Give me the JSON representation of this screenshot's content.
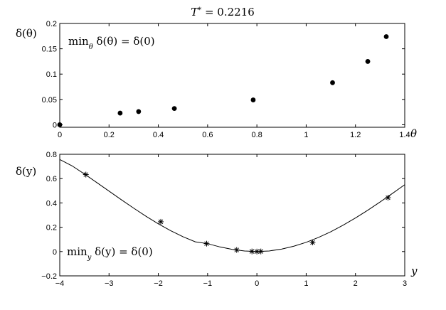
{
  "figure": {
    "title_main": "T",
    "title_sup": "*",
    "title_rest": " = 0.2216"
  },
  "chart_data": [
    {
      "type": "scatter",
      "ylabel_main": "δ(θ)",
      "xlabel_main": "θ",
      "annotation": {
        "prefix": "min",
        "subscript": "θ",
        "rest": " δ(θ) = δ(0)"
      },
      "xlim": [
        0,
        1.4
      ],
      "ylim": [
        -0.005,
        0.2
      ],
      "xticks": [
        0,
        0.2,
        0.4,
        0.6,
        0.8,
        1,
        1.2,
        1.4
      ],
      "xtick_labels": [
        "0",
        "0.2",
        "0.4",
        "0.6",
        "0.8",
        "1",
        "1.2",
        "1.4"
      ],
      "yticks": [
        0,
        0.05,
        0.1,
        0.15,
        0.2
      ],
      "ytick_labels": [
        "0",
        "0.05",
        "0.1",
        "0.15",
        "0.2"
      ],
      "grid": false,
      "marker": "dot",
      "points": [
        {
          "x": 0,
          "y": 0
        },
        {
          "x": 0.245,
          "y": 0.023
        },
        {
          "x": 0.32,
          "y": 0.026
        },
        {
          "x": 0.465,
          "y": 0.032
        },
        {
          "x": 0.785,
          "y": 0.049
        },
        {
          "x": 1.107,
          "y": 0.083
        },
        {
          "x": 1.25,
          "y": 0.125
        },
        {
          "x": 1.325,
          "y": 0.174
        }
      ]
    },
    {
      "type": "line",
      "ylabel_main": "δ(y)",
      "xlabel_main": "y",
      "annotation": {
        "prefix": "min",
        "subscript": "y",
        "rest": " δ(y) = δ(0)"
      },
      "xlim": [
        -4,
        3
      ],
      "ylim": [
        -0.2,
        0.8
      ],
      "xticks": [
        -4,
        -3,
        -2,
        -1,
        0,
        1,
        2,
        3
      ],
      "xtick_labels": [
        "−4",
        "−3",
        "−2",
        "−1",
        "0",
        "1",
        "2",
        "3"
      ],
      "yticks": [
        -0.2,
        0,
        0.2,
        0.4,
        0.6,
        0.8
      ],
      "ytick_labels": [
        "−0.2",
        "0",
        "0.2",
        "0.4",
        "0.6",
        "0.8"
      ],
      "grid": false,
      "marker": "asterisk",
      "curve": [
        {
          "x": -4,
          "y": 0.757
        },
        {
          "x": -3.75,
          "y": 0.705
        },
        {
          "x": -3.5,
          "y": 0.638
        },
        {
          "x": -3.25,
          "y": 0.568
        },
        {
          "x": -3,
          "y": 0.497
        },
        {
          "x": -2.75,
          "y": 0.426
        },
        {
          "x": -2.5,
          "y": 0.357
        },
        {
          "x": -2.25,
          "y": 0.29
        },
        {
          "x": -2,
          "y": 0.228
        },
        {
          "x": -1.75,
          "y": 0.172
        },
        {
          "x": -1.5,
          "y": 0.122
        },
        {
          "x": -1.25,
          "y": 0.08
        },
        {
          "x": -1,
          "y": 0.065
        },
        {
          "x": -0.75,
          "y": 0.038
        },
        {
          "x": -0.5,
          "y": 0.018
        },
        {
          "x": -0.25,
          "y": 0.005
        },
        {
          "x": 0,
          "y": 0
        },
        {
          "x": 0.25,
          "y": 0.005
        },
        {
          "x": 0.5,
          "y": 0.02
        },
        {
          "x": 0.75,
          "y": 0.044
        },
        {
          "x": 1,
          "y": 0.076
        },
        {
          "x": 1.25,
          "y": 0.116
        },
        {
          "x": 1.5,
          "y": 0.163
        },
        {
          "x": 1.75,
          "y": 0.217
        },
        {
          "x": 2,
          "y": 0.276
        },
        {
          "x": 2.25,
          "y": 0.34
        },
        {
          "x": 2.5,
          "y": 0.408
        },
        {
          "x": 2.75,
          "y": 0.478
        },
        {
          "x": 3,
          "y": 0.55
        }
      ],
      "points": [
        {
          "x": -3.47,
          "y": 0.633
        },
        {
          "x": -1.95,
          "y": 0.245
        },
        {
          "x": -1.02,
          "y": 0.065
        },
        {
          "x": -0.41,
          "y": 0.013
        },
        {
          "x": -0.1,
          "y": 0.001
        },
        {
          "x": 0,
          "y": 0
        },
        {
          "x": 0.08,
          "y": 0.001
        },
        {
          "x": 1.13,
          "y": 0.075
        },
        {
          "x": 2.66,
          "y": 0.443
        }
      ]
    }
  ]
}
